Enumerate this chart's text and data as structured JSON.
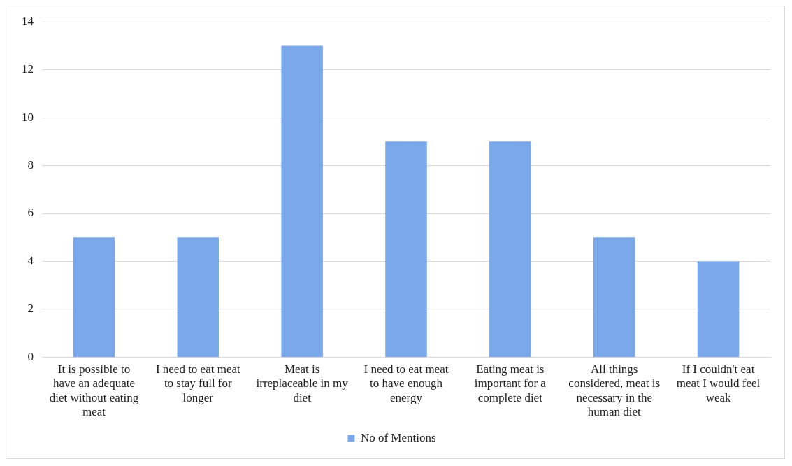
{
  "chart_data": {
    "type": "bar",
    "categories": [
      "It is possible to have an adequate diet without eating meat",
      "I need to eat meat to stay full for longer",
      "Meat is irreplaceable in my diet",
      "I need to eat meat to have enough energy",
      "Eating meat is important for a complete diet",
      "All things considered, meat is necessary in the human diet",
      "If I couldn't eat meat I would feel weak"
    ],
    "series": [
      {
        "name": "No of Mentions",
        "color": "#7aa8ea",
        "values": [
          5,
          5,
          13,
          9,
          9,
          5,
          4
        ]
      }
    ],
    "ylim": [
      0,
      14
    ],
    "yticks": [
      0,
      2,
      4,
      6,
      8,
      10,
      12,
      14
    ],
    "grid": "y",
    "legend": "bottom"
  }
}
